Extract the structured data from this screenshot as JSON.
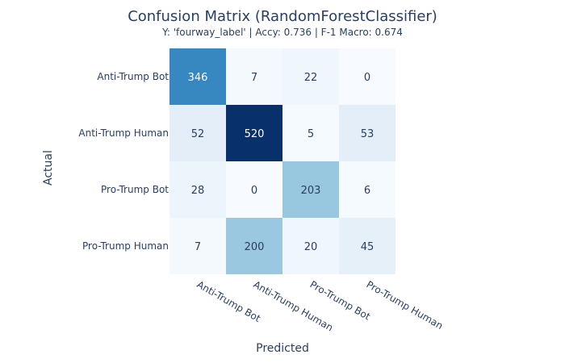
{
  "chart_data": {
    "type": "heatmap",
    "title": "Confusion Matrix (RandomForestClassifier)",
    "subtitle": "Y: 'fourway_label' | Accy: 0.736 | F-1 Macro: 0.674",
    "xlabel": "Predicted",
    "ylabel": "Actual",
    "x_categories": [
      "Anti-Trump Bot",
      "Anti-Trump Human",
      "Pro-Trump Bot",
      "Pro-Trump Human"
    ],
    "y_categories": [
      "Anti-Trump Bot",
      "Anti-Trump Human",
      "Pro-Trump Bot",
      "Pro-Trump Human"
    ],
    "z": [
      [
        346,
        7,
        22,
        0
      ],
      [
        52,
        520,
        5,
        53
      ],
      [
        28,
        0,
        203,
        6
      ],
      [
        7,
        200,
        20,
        45
      ]
    ],
    "colorscale": [
      "#f7fbff",
      "#deebf7",
      "#c6dbef",
      "#9ecae1",
      "#6baed6",
      "#4292c6",
      "#2171b5",
      "#08519c",
      "#08306b"
    ],
    "zmin": 0,
    "zmax": 520,
    "show_scale": false
  }
}
